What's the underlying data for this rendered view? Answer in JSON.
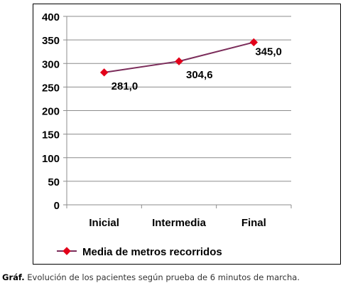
{
  "chart_data": {
    "type": "line",
    "categories": [
      "Inicial",
      "Intermedia",
      "Final"
    ],
    "series": [
      {
        "name": "Media de metros recorridos",
        "values": [
          281.0,
          304.6,
          345.0
        ],
        "labels": [
          "281,0",
          "304,6",
          "345,0"
        ],
        "color": "#7B2C5A",
        "marker_color": "#E2001A"
      }
    ],
    "ylim": [
      0,
      400
    ],
    "yticks": [
      0,
      50,
      100,
      150,
      200,
      250,
      300,
      350,
      400
    ],
    "grid": true,
    "legend": "bottom-left",
    "xlabel": "",
    "ylabel": ""
  },
  "caption": {
    "prefix": "Gráf.",
    "text": " Evolución de los pacientes según prueba de 6 minutos de marcha."
  }
}
